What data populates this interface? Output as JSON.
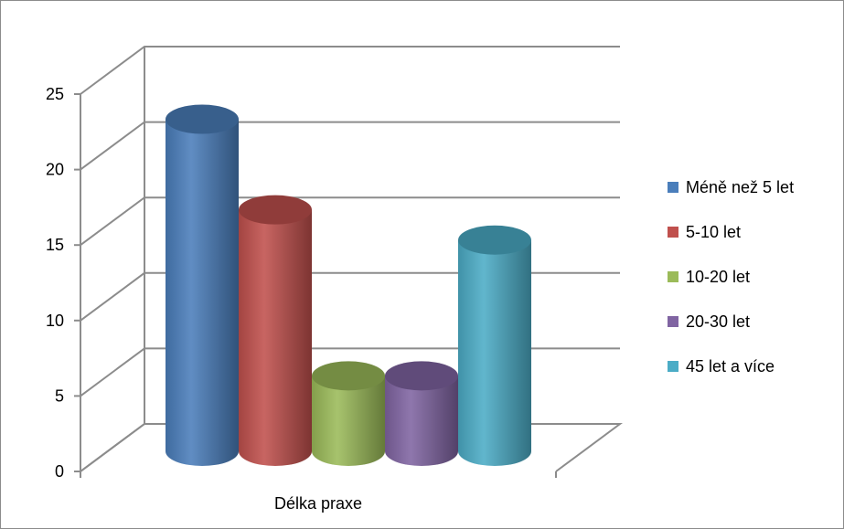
{
  "chart_data": {
    "type": "bar",
    "style": "3d-cylinder",
    "title": "",
    "xlabel": "",
    "ylabel": "",
    "categories": [
      "Délka praxe"
    ],
    "series": [
      {
        "name": "Méně než 5 let",
        "color": "#4a7ebb",
        "values": [
          22
        ]
      },
      {
        "name": "5-10 let",
        "color": "#c0504d",
        "values": [
          16
        ]
      },
      {
        "name": "10-20 let",
        "color": "#9bbb59",
        "values": [
          5
        ]
      },
      {
        "name": "20-30 let",
        "color": "#8064a2",
        "values": [
          5
        ]
      },
      {
        "name": "45 let a více",
        "color": "#4bacc6",
        "values": [
          14
        ]
      }
    ],
    "ylim": [
      0,
      25
    ],
    "yticks": [
      "0",
      "5",
      "10",
      "15",
      "20",
      "25"
    ],
    "grid": true,
    "legend": "right"
  }
}
